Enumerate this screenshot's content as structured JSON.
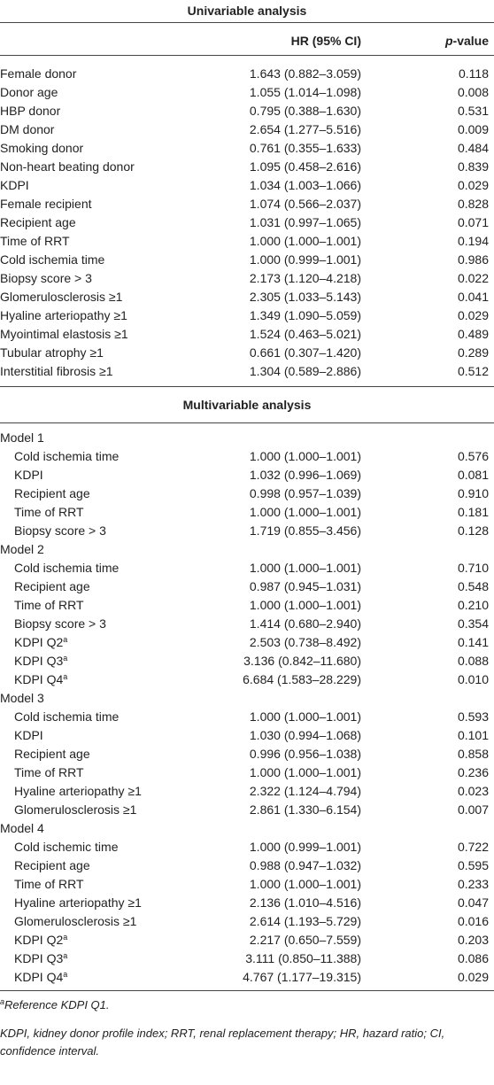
{
  "header": {
    "title": "Univariable analysis",
    "hr": "HR (95% CI)",
    "p_italic": "p",
    "p_rest": "-value"
  },
  "univariable": {
    "rows": [
      {
        "label": "Female donor",
        "hr": "1.643 (0.882–3.059)",
        "p": "0.118"
      },
      {
        "label": "Donor age",
        "hr": "1.055 (1.014–1.098)",
        "p": "0.008"
      },
      {
        "label": "HBP donor",
        "hr": "0.795 (0.388–1.630)",
        "p": "0.531"
      },
      {
        "label": "DM donor",
        "hr": "2.654 (1.277–5.516)",
        "p": "0.009"
      },
      {
        "label": "Smoking donor",
        "hr": "0.761 (0.355–1.633)",
        "p": "0.484"
      },
      {
        "label": "Non-heart beating donor",
        "hr": "1.095 (0.458–2.616)",
        "p": "0.839"
      },
      {
        "label": "KDPI",
        "hr": "1.034 (1.003–1.066)",
        "p": "0.029"
      },
      {
        "label": "Female recipient",
        "hr": "1.074 (0.566–2.037)",
        "p": "0.828"
      },
      {
        "label": "Recipient age",
        "hr": "1.031 (0.997–1.065)",
        "p": "0.071"
      },
      {
        "label": "Time of RRT",
        "hr": "1.000 (1.000–1.001)",
        "p": "0.194"
      },
      {
        "label": "Cold ischemia time",
        "hr": "1.000 (0.999–1.001)",
        "p": "0.986"
      },
      {
        "label": "Biopsy score > 3",
        "hr": "2.173 (1.120–4.218)",
        "p": "0.022"
      },
      {
        "label": "Glomerulosclerosis ≥1",
        "hr": "2.305 (1.033–5.143)",
        "p": "0.041"
      },
      {
        "label": "Hyaline arteriopathy ≥1",
        "hr": "1.349 (1.090–5.059)",
        "p": "0.029"
      },
      {
        "label": "Myointimal elastosis ≥1",
        "hr": "1.524 (0.463–5.021)",
        "p": "0.489"
      },
      {
        "label": "Tubular atrophy ≥1",
        "hr": "0.661 (0.307–1.420)",
        "p": "0.289"
      },
      {
        "label": "Interstitial fibrosis ≥1",
        "hr": "1.304 (0.589–2.886)",
        "p": "0.512"
      }
    ]
  },
  "multivariable": {
    "title": "Multivariable analysis",
    "models": [
      {
        "name": "Model 1",
        "rows": [
          {
            "label": "Cold ischemia time",
            "hr": "1.000 (1.000–1.001)",
            "p": "0.576"
          },
          {
            "label": "KDPI",
            "hr": "1.032 (0.996–1.069)",
            "p": "0.081"
          },
          {
            "label": "Recipient age",
            "hr": "0.998 (0.957–1.039)",
            "p": "0.910"
          },
          {
            "label": "Time of RRT",
            "hr": "1.000 (1.000–1.001)",
            "p": "0.181"
          },
          {
            "label": "Biopsy score > 3",
            "hr": "1.719 (0.855–3.456)",
            "p": "0.128"
          }
        ]
      },
      {
        "name": "Model 2",
        "rows": [
          {
            "label": "Cold ischemia time",
            "hr": "1.000 (1.000–1.001)",
            "p": "0.710"
          },
          {
            "label": "Recipient age",
            "hr": "0.987 (0.945–1.031)",
            "p": "0.548"
          },
          {
            "label": "Time of RRT",
            "hr": "1.000 (1.000–1.001)",
            "p": "0.210"
          },
          {
            "label": "Biopsy score > 3",
            "hr": "1.414 (0.680–2.940)",
            "p": "0.354"
          },
          {
            "label": "KDPI Q2",
            "sup": "a",
            "hr": "2.503 (0.738–8.492)",
            "p": "0.141"
          },
          {
            "label": "KDPI Q3",
            "sup": "a",
            "hr": "3.136 (0.842–11.680)",
            "p": "0.088"
          },
          {
            "label": "KDPI Q4",
            "sup": "a",
            "hr": "6.684 (1.583–28.229)",
            "p": "0.010"
          }
        ]
      },
      {
        "name": "Model 3",
        "rows": [
          {
            "label": "Cold ischemia time",
            "hr": "1.000 (1.000–1.001)",
            "p": "0.593"
          },
          {
            "label": "KDPI",
            "hr": "1.030 (0.994–1.068)",
            "p": "0.101"
          },
          {
            "label": "Recipient age",
            "hr": "0.996 (0.956–1.038)",
            "p": "0.858"
          },
          {
            "label": "Time of RRT",
            "hr": "1.000 (1.000–1.001)",
            "p": "0.236"
          },
          {
            "label": "Hyaline arteriopathy ≥1",
            "hr": "2.322 (1.124–4.794)",
            "p": "0.023"
          },
          {
            "label": "Glomerulosclerosis ≥1",
            "hr": "2.861 (1.330–6.154)",
            "p": "0.007"
          }
        ]
      },
      {
        "name": "Model 4",
        "rows": [
          {
            "label": "Cold ischemic time",
            "hr": "1.000 (0.999–1.001)",
            "p": "0.722"
          },
          {
            "label": "Recipient age",
            "hr": "0.988 (0.947–1.032)",
            "p": "0.595"
          },
          {
            "label": "Time of RRT",
            "hr": "1.000 (1.000–1.001)",
            "p": "0.233"
          },
          {
            "label": "Hyaline arteriopathy ≥1",
            "hr": "2.136 (1.010–4.516)",
            "p": "0.047"
          },
          {
            "label": "Glomerulosclerosis ≥1",
            "hr": "2.614 (1.193–5.729)",
            "p": "0.016"
          },
          {
            "label": "KDPI Q2",
            "sup": "a",
            "hr": "2.217 (0.650–7.559)",
            "p": "0.203"
          },
          {
            "label": "KDPI Q3",
            "sup": "a",
            "hr": "3.111 (0.850–11.388)",
            "p": "0.086"
          },
          {
            "label": "KDPI Q4",
            "sup": "a",
            "hr": "4.767 (1.177–19.315)",
            "p": "0.029"
          }
        ]
      }
    ]
  },
  "footnotes": [
    {
      "sup": "a",
      "text": "Reference KDPI Q1."
    },
    {
      "text": "KDPI, kidney donor profile index; RRT, renal replacement therapy; HR, hazard ratio; CI, confidence interval."
    }
  ]
}
